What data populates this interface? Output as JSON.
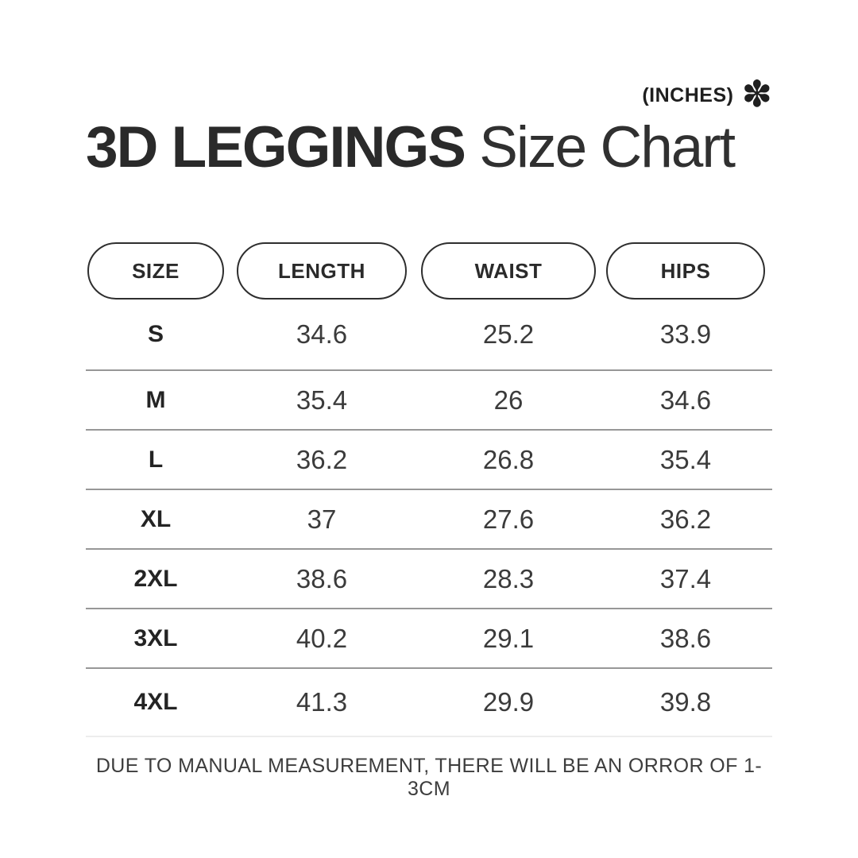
{
  "header": {
    "unit_note": "(INCHES)",
    "asterisk_icon": "✽",
    "title_bold": "3D LEGGINGS",
    "title_regular": " Size Chart"
  },
  "table": {
    "columns": [
      "SIZE",
      "LENGTH",
      "WAIST",
      "HIPS"
    ],
    "rows": [
      {
        "size": "S",
        "length": "34.6",
        "waist": "25.2",
        "hips": "33.9"
      },
      {
        "size": "M",
        "length": "35.4",
        "waist": "26",
        "hips": "34.6"
      },
      {
        "size": "L",
        "length": "36.2",
        "waist": "26.8",
        "hips": "35.4"
      },
      {
        "size": "XL",
        "length": "37",
        "waist": "27.6",
        "hips": "36.2"
      },
      {
        "size": "2XL",
        "length": "38.6",
        "waist": "28.3",
        "hips": "37.4"
      },
      {
        "size": "3XL",
        "length": "40.2",
        "waist": "29.1",
        "hips": "38.6"
      },
      {
        "size": "4XL",
        "length": "41.3",
        "waist": "29.9",
        "hips": "39.8"
      }
    ]
  },
  "footer": {
    "note": "DUE TO MANUAL MEASUREMENT, THERE WILL BE AN ORROR OF 1-3CM"
  },
  "colors": {
    "text": "#272727",
    "divider": "#979797",
    "light_divider": "#ededed",
    "background": "#ffffff"
  },
  "chart_data": {
    "type": "table",
    "title": "3D LEGGINGS Size Chart",
    "unit": "INCHES",
    "columns": [
      "SIZE",
      "LENGTH",
      "WAIST",
      "HIPS"
    ],
    "rows": [
      [
        "S",
        34.6,
        25.2,
        33.9
      ],
      [
        "M",
        35.4,
        26,
        34.6
      ],
      [
        "L",
        36.2,
        26.8,
        35.4
      ],
      [
        "XL",
        37,
        27.6,
        36.2
      ],
      [
        "2XL",
        38.6,
        28.3,
        37.4
      ],
      [
        "3XL",
        40.2,
        29.1,
        38.6
      ],
      [
        "4XL",
        41.3,
        29.9,
        39.8
      ]
    ],
    "footnote": "DUE TO MANUAL MEASUREMENT, THERE WILL BE AN ORROR OF 1-3CM"
  }
}
